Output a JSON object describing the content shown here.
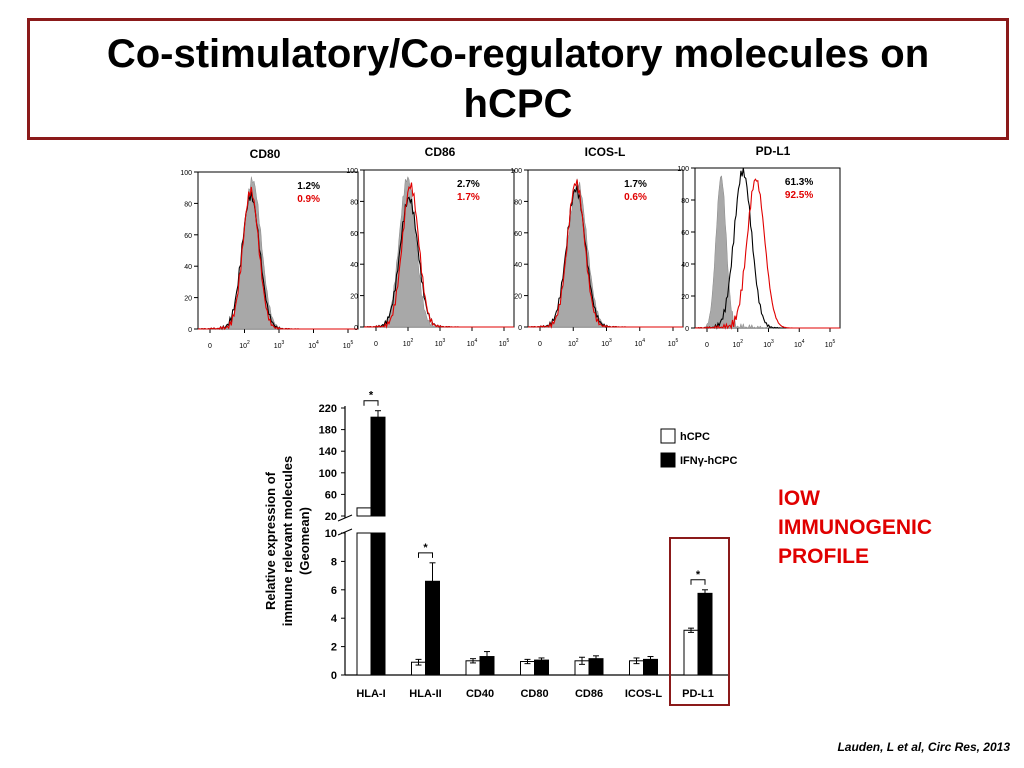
{
  "title": "Co-stimulatory/Co-regulatory molecules on hCPC",
  "annotation_lines": [
    "lOW",
    "IMMUNOGENIC",
    "PROFILE"
  ],
  "citation": "Lauden, L et al, Circ Res, 2013",
  "colors": {
    "red": "#e00000",
    "frame": "#8b1a1a",
    "isotype": "#a8a8a8"
  },
  "chart_data": [
    {
      "type": "histogram-panels",
      "yticks": [
        "0",
        "20",
        "40",
        "60",
        "80",
        "100"
      ],
      "xticks": [
        "0",
        "10",
        "10",
        "10",
        "10"
      ],
      "xtick_exponents": [
        "",
        "2",
        "3",
        "4",
        "5"
      ],
      "ylim": [
        0,
        100
      ],
      "panels": [
        {
          "title": "CD80",
          "pct_black": "1.2%",
          "pct_red": "0.9%"
        },
        {
          "title": "CD86",
          "pct_black": "2.7%",
          "pct_red": "1.7%"
        },
        {
          "title": "ICOS-L",
          "pct_black": "1.7%",
          "pct_red": "0.6%"
        },
        {
          "title": "PD-L1",
          "pct_black": "61.3%",
          "pct_red": "92.5%"
        }
      ]
    },
    {
      "type": "bar",
      "ylabel_lines": [
        "Relative expression of",
        "immune relevant molecules",
        "(Geomean)"
      ],
      "yticks_upper": [
        "20",
        "60",
        "100",
        "140",
        "180",
        "220"
      ],
      "yticks_lower": [
        "0",
        "2",
        "4",
        "6",
        "8",
        "10"
      ],
      "categories": [
        "HLA-I",
        "HLA-II",
        "CD40",
        "CD80",
        "CD86",
        "ICOS-L",
        "PD-L1"
      ],
      "series": [
        {
          "name": "hCPC",
          "values": [
            35,
            0.9,
            1.0,
            0.95,
            1.0,
            1.0,
            3.15
          ],
          "errors": [
            0,
            0.2,
            0.15,
            0.15,
            0.25,
            0.2,
            0.15
          ],
          "color": "#ffffff"
        },
        {
          "name": "IFNγ-hCPC",
          "values": [
            203,
            6.6,
            1.3,
            1.05,
            1.15,
            1.1,
            5.75
          ],
          "errors": [
            12,
            1.3,
            0.35,
            0.15,
            0.2,
            0.2,
            0.25
          ],
          "color": "#000000"
        }
      ],
      "significance_marker": "*",
      "significant_categories": [
        "HLA-I",
        "HLA-II",
        "PD-L1"
      ],
      "highlighted_category": "PD-L1",
      "ylim_lower": [
        0,
        10
      ],
      "ylim_upper": [
        20,
        220
      ]
    }
  ]
}
